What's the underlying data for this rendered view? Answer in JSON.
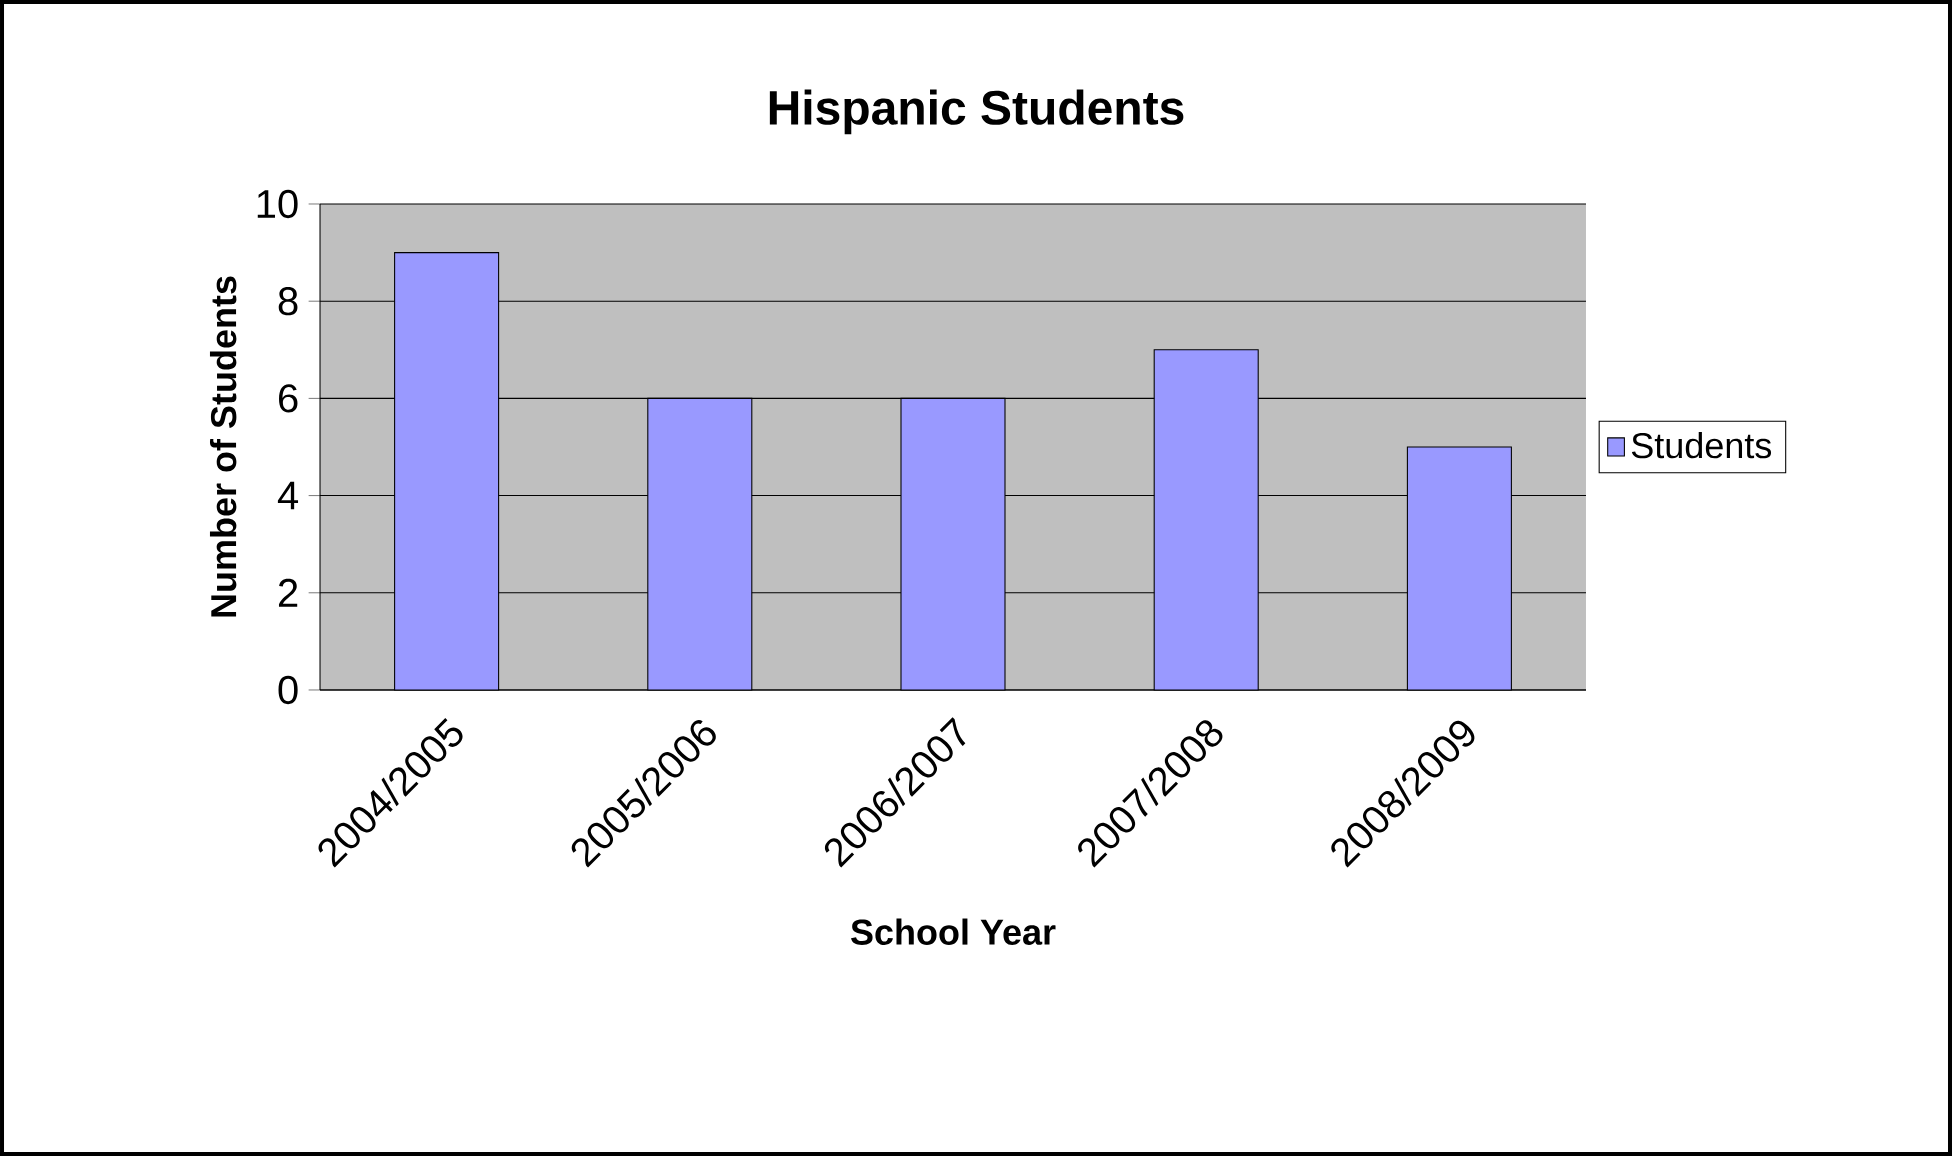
{
  "chart_data": {
    "type": "bar",
    "title": "Hispanic Students",
    "xlabel": "School Year",
    "ylabel": "Number of Students",
    "categories": [
      "2004/2005",
      "2005/2006",
      "2006/2007",
      "2007/2008",
      "2008/2009"
    ],
    "series": [
      {
        "name": "Students",
        "color": "#9999ff",
        "values": [
          9,
          6,
          6,
          7,
          5
        ]
      }
    ],
    "ylim": [
      0,
      10
    ],
    "yticks": [
      0,
      2,
      4,
      6,
      8,
      10
    ],
    "grid": "y",
    "legend": "right"
  }
}
